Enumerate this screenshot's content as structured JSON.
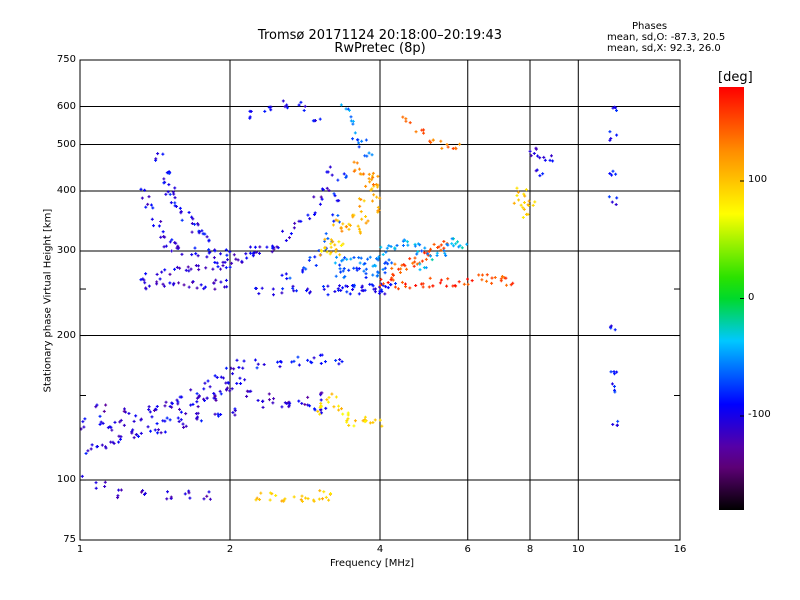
{
  "title_line1": "Tromsø 20171124 20:18:00–20:19:43",
  "title_line2": "RwPretec (8p)",
  "phases": {
    "heading": "Phases",
    "line_o": "mean, sd,O: -87.3, 20.5",
    "line_x": "mean, sd,X:  92.3, 26.0"
  },
  "chart_data": {
    "type": "scatter",
    "xlabel": "Frequency [MHz]",
    "ylabel": "Stationary phase Virtual Height [km]",
    "xscale": "log",
    "yscale": "log",
    "xlim": [
      1,
      16
    ],
    "ylim": [
      75,
      750
    ],
    "x_ticks": [
      1,
      2,
      4,
      6,
      8,
      10,
      16
    ],
    "x_tick_labels": [
      "1",
      "2",
      "4",
      "6",
      "8",
      "10",
      "16"
    ],
    "y_ticks": [
      75,
      100,
      200,
      300,
      400,
      500,
      600,
      750
    ],
    "y_tick_labels": [
      "75",
      "100",
      "200",
      "300",
      "400",
      "500",
      "600",
      "750"
    ],
    "y_minor_ticks": [
      150,
      250
    ],
    "grid": true,
    "colorbar": {
      "label": "[deg]",
      "range": [
        -180,
        180
      ],
      "ticks": [
        100,
        0,
        -100
      ],
      "tick_labels": [
        "100",
        "0",
        "-100"
      ],
      "colormap": "rainbow (black-purple-blue-cyan-green-yellow-orange-red)"
    },
    "traces": [
      {
        "name": "",
        "phase": -100,
        "points": [
          [
            1.0,
            118
          ],
          [
            1.05,
            116
          ],
          [
            1.1,
            117
          ],
          [
            1.15,
            119
          ],
          [
            1.2,
            121
          ],
          [
            1.3,
            124
          ],
          [
            1.4,
            128
          ],
          [
            1.5,
            132
          ],
          [
            1.6,
            136
          ],
          [
            1.7,
            140
          ],
          [
            1.8,
            145
          ],
          [
            1.9,
            150
          ],
          [
            2.0,
            156
          ],
          [
            2.1,
            162
          ]
        ]
      },
      {
        "name": "",
        "phase": -100,
        "points": [
          [
            1.0,
            135
          ],
          [
            1.1,
            133
          ],
          [
            1.2,
            131
          ],
          [
            1.3,
            134
          ],
          [
            1.4,
            138
          ],
          [
            1.5,
            142
          ],
          [
            1.6,
            147
          ],
          [
            1.7,
            152
          ],
          [
            1.8,
            158
          ],
          [
            1.9,
            164
          ],
          [
            2.0,
            170
          ]
        ]
      },
      {
        "name": "",
        "phase": -100,
        "points": [
          [
            1.0,
            128
          ],
          [
            1.15,
            127
          ],
          [
            1.3,
            126
          ],
          [
            1.45,
            128
          ],
          [
            1.6,
            130
          ],
          [
            1.75,
            133
          ],
          [
            1.9,
            136
          ],
          [
            2.05,
            139
          ],
          [
            2.3,
            143
          ],
          [
            2.6,
            144
          ],
          [
            2.9,
            142
          ],
          [
            3.1,
            140
          ]
        ]
      },
      {
        "name": "",
        "phase": -110,
        "points": [
          [
            1.0,
            142
          ],
          [
            1.1,
            140
          ],
          [
            1.25,
            139
          ],
          [
            1.4,
            141
          ],
          [
            1.55,
            143
          ],
          [
            1.7,
            146
          ],
          [
            1.85,
            150
          ],
          [
            2.0,
            153
          ],
          [
            2.2,
            150
          ],
          [
            2.4,
            148
          ],
          [
            2.6,
            146
          ],
          [
            2.8,
            147
          ],
          [
            3.0,
            149
          ]
        ]
      },
      {
        "name": "",
        "phase": -110,
        "points": [
          [
            1.38,
            254
          ],
          [
            1.45,
            254
          ],
          [
            1.55,
            254
          ],
          [
            1.65,
            254
          ],
          [
            1.75,
            254
          ],
          [
            1.85,
            255
          ],
          [
            1.95,
            256
          ]
        ]
      },
      {
        "name": "",
        "phase": -105,
        "points": [
          [
            1.35,
            265
          ],
          [
            1.45,
            268
          ],
          [
            1.55,
            272
          ],
          [
            1.65,
            275
          ],
          [
            1.75,
            276
          ],
          [
            1.85,
            278
          ],
          [
            1.95,
            280
          ],
          [
            2.0,
            283
          ],
          [
            2.1,
            290
          ],
          [
            2.2,
            296
          ],
          [
            2.3,
            302
          ],
          [
            2.45,
            310
          ],
          [
            2.6,
            322
          ],
          [
            2.75,
            338
          ],
          [
            2.9,
            358
          ],
          [
            3.0,
            380
          ],
          [
            3.1,
            410
          ],
          [
            3.2,
            440
          ]
        ]
      },
      {
        "name": "",
        "phase": -100,
        "points": [
          [
            1.35,
            395
          ],
          [
            1.38,
            370
          ],
          [
            1.42,
            345
          ],
          [
            1.46,
            325
          ],
          [
            1.5,
            312
          ],
          [
            1.55,
            305
          ],
          [
            1.6,
            302
          ],
          [
            1.7,
            300
          ],
          [
            1.8,
            298
          ],
          [
            1.9,
            296
          ],
          [
            2.0,
            297
          ],
          [
            2.2,
            300
          ],
          [
            2.4,
            305
          ]
        ]
      },
      {
        "name": "",
        "phase": -95,
        "points": [
          [
            1.45,
            470
          ],
          [
            1.48,
            440
          ],
          [
            1.5,
            420
          ],
          [
            1.52,
            400
          ],
          [
            1.55,
            385
          ],
          [
            1.58,
            370
          ],
          [
            1.62,
            355
          ],
          [
            1.66,
            345
          ],
          [
            1.7,
            335
          ],
          [
            1.75,
            325
          ],
          [
            1.8,
            318
          ]
        ]
      },
      {
        "name": "",
        "phase": -95,
        "points": [
          [
            2.3,
            250
          ],
          [
            2.5,
            249
          ],
          [
            2.7,
            248
          ],
          [
            2.9,
            248
          ],
          [
            3.1,
            249
          ],
          [
            3.3,
            249
          ],
          [
            3.5,
            249
          ],
          [
            3.7,
            249
          ],
          [
            3.9,
            250
          ],
          [
            4.1,
            250
          ]
        ]
      },
      {
        "name": "",
        "phase": -90,
        "points": [
          [
            3.4,
            250
          ],
          [
            3.6,
            250
          ],
          [
            3.8,
            250
          ],
          [
            4.0,
            251
          ],
          [
            4.2,
            251
          ]
        ]
      },
      {
        "name": "",
        "phase": 160,
        "points": [
          [
            4.1,
            256
          ],
          [
            4.3,
            256
          ],
          [
            4.5,
            257
          ],
          [
            4.8,
            257
          ],
          [
            5.1,
            257
          ],
          [
            5.4,
            257
          ],
          [
            5.7,
            257
          ],
          [
            6.0,
            257
          ]
        ]
      },
      {
        "name": "",
        "phase": -80,
        "points": [
          [
            2.6,
            265
          ],
          [
            2.8,
            275
          ],
          [
            2.95,
            285
          ],
          [
            3.05,
            300
          ],
          [
            3.15,
            320
          ],
          [
            3.25,
            350
          ],
          [
            3.3,
            390
          ],
          [
            3.35,
            430
          ]
        ]
      },
      {
        "name": "",
        "phase": -60,
        "points": [
          [
            3.3,
            285
          ],
          [
            3.45,
            285
          ],
          [
            3.6,
            285
          ],
          [
            3.75,
            285
          ],
          [
            3.9,
            285
          ],
          [
            4.05,
            285
          ],
          [
            4.2,
            285
          ]
        ]
      },
      {
        "name": "",
        "phase": -70,
        "points": [
          [
            3.3,
            270
          ],
          [
            3.45,
            270
          ],
          [
            3.6,
            270
          ],
          [
            3.75,
            270
          ],
          [
            3.9,
            270
          ],
          [
            4.05,
            270
          ]
        ]
      },
      {
        "name": "",
        "phase": 110,
        "points": [
          [
            3.3,
            340
          ],
          [
            3.4,
            330
          ],
          [
            3.5,
            340
          ],
          [
            3.6,
            360
          ],
          [
            3.7,
            380
          ],
          [
            3.8,
            400
          ],
          [
            3.9,
            420
          ],
          [
            3.7,
            350
          ],
          [
            3.6,
            330
          ]
        ]
      },
      {
        "name": "",
        "phase": 120,
        "points": [
          [
            3.6,
            450
          ],
          [
            3.7,
            440
          ],
          [
            3.8,
            430
          ],
          [
            3.9,
            410
          ],
          [
            3.95,
            390
          ],
          [
            3.9,
            370
          ]
        ]
      },
      {
        "name": "",
        "phase": 95,
        "points": [
          [
            3.1,
            300
          ],
          [
            3.15,
            310
          ],
          [
            3.2,
            305
          ],
          [
            3.25,
            300
          ],
          [
            3.3,
            308
          ]
        ]
      },
      {
        "name": "",
        "phase": 150,
        "points": [
          [
            4.2,
            270
          ],
          [
            4.35,
            275
          ],
          [
            4.5,
            280
          ],
          [
            4.65,
            285
          ],
          [
            4.8,
            290
          ],
          [
            4.95,
            295
          ],
          [
            5.1,
            300
          ],
          [
            5.25,
            305
          ],
          [
            5.4,
            310
          ]
        ]
      },
      {
        "name": "",
        "phase": -50,
        "points": [
          [
            4.1,
            300
          ],
          [
            4.25,
            305
          ],
          [
            4.4,
            310
          ],
          [
            4.55,
            315
          ],
          [
            4.7,
            310
          ],
          [
            4.85,
            302
          ]
        ]
      },
      {
        "name": "",
        "phase": -40,
        "points": [
          [
            4.9,
            280
          ],
          [
            5.1,
            290
          ],
          [
            5.3,
            300
          ],
          [
            5.5,
            310
          ],
          [
            5.7,
            315
          ],
          [
            5.85,
            310
          ]
        ]
      },
      {
        "name": "",
        "phase": -90,
        "points": [
          [
            2.1,
            175
          ],
          [
            2.3,
            175
          ],
          [
            2.5,
            176
          ],
          [
            2.7,
            177
          ],
          [
            2.9,
            178
          ],
          [
            3.1,
            178
          ],
          [
            3.3,
            178
          ]
        ]
      },
      {
        "name": "",
        "phase": 90,
        "points": [
          [
            3.0,
            140
          ],
          [
            3.1,
            145
          ],
          [
            3.2,
            148
          ],
          [
            3.3,
            142
          ],
          [
            3.4,
            135
          ],
          [
            3.5,
            132
          ],
          [
            3.65,
            132
          ],
          [
            3.8,
            132
          ],
          [
            3.95,
            132
          ]
        ]
      },
      {
        "name": "",
        "phase": 100,
        "points": [
          [
            2.3,
            92
          ],
          [
            2.45,
            92
          ],
          [
            2.6,
            92
          ],
          [
            2.75,
            92
          ],
          [
            2.9,
            92
          ],
          [
            3.05,
            93
          ],
          [
            3.15,
            93
          ]
        ]
      },
      {
        "name": "",
        "phase": -110,
        "points": [
          [
            1.0,
            100
          ],
          [
            1.1,
            97
          ],
          [
            1.2,
            94
          ],
          [
            1.35,
            93
          ],
          [
            1.5,
            93
          ],
          [
            1.65,
            93
          ],
          [
            1.8,
            93
          ]
        ]
      },
      {
        "name": "",
        "phase": -100,
        "points": [
          [
            2.2,
            580
          ],
          [
            2.4,
            590
          ],
          [
            2.6,
            610
          ],
          [
            2.8,
            600
          ],
          [
            3.0,
            570
          ]
        ]
      },
      {
        "name": "",
        "phase": -60,
        "points": [
          [
            3.4,
            600
          ],
          [
            3.5,
            560
          ],
          [
            3.6,
            520
          ],
          [
            3.7,
            500
          ],
          [
            3.8,
            480
          ]
        ]
      },
      {
        "name": "",
        "phase": 140,
        "points": [
          [
            4.5,
            560
          ],
          [
            4.8,
            530
          ],
          [
            5.1,
            510
          ],
          [
            5.4,
            500
          ],
          [
            5.7,
            490
          ]
        ]
      },
      {
        "name": "",
        "phase": 150,
        "points": [
          [
            6.4,
            265
          ],
          [
            6.7,
            262
          ],
          [
            7.0,
            260
          ],
          [
            7.3,
            258
          ]
        ]
      },
      {
        "name": "",
        "phase": 100,
        "points": [
          [
            7.6,
            385
          ],
          [
            7.8,
            375
          ],
          [
            8.0,
            380
          ],
          [
            7.9,
            360
          ],
          [
            7.7,
            400
          ]
        ]
      },
      {
        "name": "",
        "phase": -100,
        "points": [
          [
            8.1,
            480
          ],
          [
            8.4,
            480
          ],
          [
            8.7,
            470
          ],
          [
            8.3,
            440
          ]
        ]
      },
      {
        "name": "",
        "phase": -90,
        "points": [
          [
            11.8,
            600
          ],
          [
            11.8,
            520
          ],
          [
            11.8,
            430
          ],
          [
            11.8,
            380
          ],
          [
            11.8,
            210
          ],
          [
            11.8,
            170
          ],
          [
            11.8,
            155
          ],
          [
            11.8,
            130
          ]
        ]
      }
    ]
  }
}
